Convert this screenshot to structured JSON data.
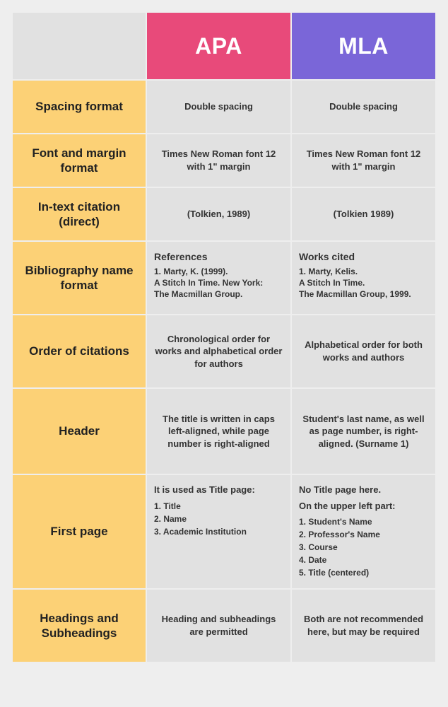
{
  "colors": {
    "page_bg": "#eeeeee",
    "cell_bg": "#e1e1e1",
    "label_bg": "#fcd176",
    "apa_bg": "#e84a7a",
    "mla_bg": "#7a66d8",
    "header_text": "#ffffff",
    "body_text": "#222222"
  },
  "headers": {
    "apa": "APA",
    "mla": "MLA"
  },
  "rows": {
    "spacing": {
      "label": "Spacing format",
      "apa": "Double spacing",
      "mla": "Double spacing"
    },
    "font": {
      "label": "Font and margin format",
      "apa": "Times New Roman font 12 with 1\" margin",
      "mla": "Times New Roman font 12 with 1\" margin"
    },
    "intext": {
      "label": "In-text citation (direct)",
      "apa": "(Tolkien, 1989)",
      "mla": "(Tolkien 1989)"
    },
    "biblio": {
      "label": "Bibliography name format",
      "apa": {
        "title": "References",
        "l1": "1. Marty, K. (1999).",
        "l2": "A Stitch In Time. New York:",
        "l3": "The Macmillan Group."
      },
      "mla": {
        "title": "Works cited",
        "l1": "1. Marty, Kelis.",
        "l2": "A Stitch In Time.",
        "l3": "The Macmillan Group, 1999."
      }
    },
    "order": {
      "label": "Order of citations",
      "apa": "Chronological order for works and alphabetical order for authors",
      "mla": "Alphabetical order for both works and authors"
    },
    "header": {
      "label": "Header",
      "apa": "The title is written in caps left-aligned, while page number is right-aligned",
      "mla": "Student's last name, as well as page number, is right-aligned. (Surname 1)"
    },
    "firstpage": {
      "label": "First page",
      "apa": {
        "head": "It is used as Title page:",
        "l1": "1. Title",
        "l2": "2. Name",
        "l3": "3. Academic Institution"
      },
      "mla": {
        "head1": "No Title page here.",
        "head2": "On the upper left part:",
        "l1": "1. Student's Name",
        "l2": "2. Professor's Name",
        "l3": "3. Course",
        "l4": "4. Date",
        "l5": "5. Title (centered)"
      }
    },
    "headings": {
      "label": "Headings and Subheadings",
      "apa": "Heading and subheadings are permitted",
      "mla": "Both are not recommended here, but may be required"
    }
  }
}
